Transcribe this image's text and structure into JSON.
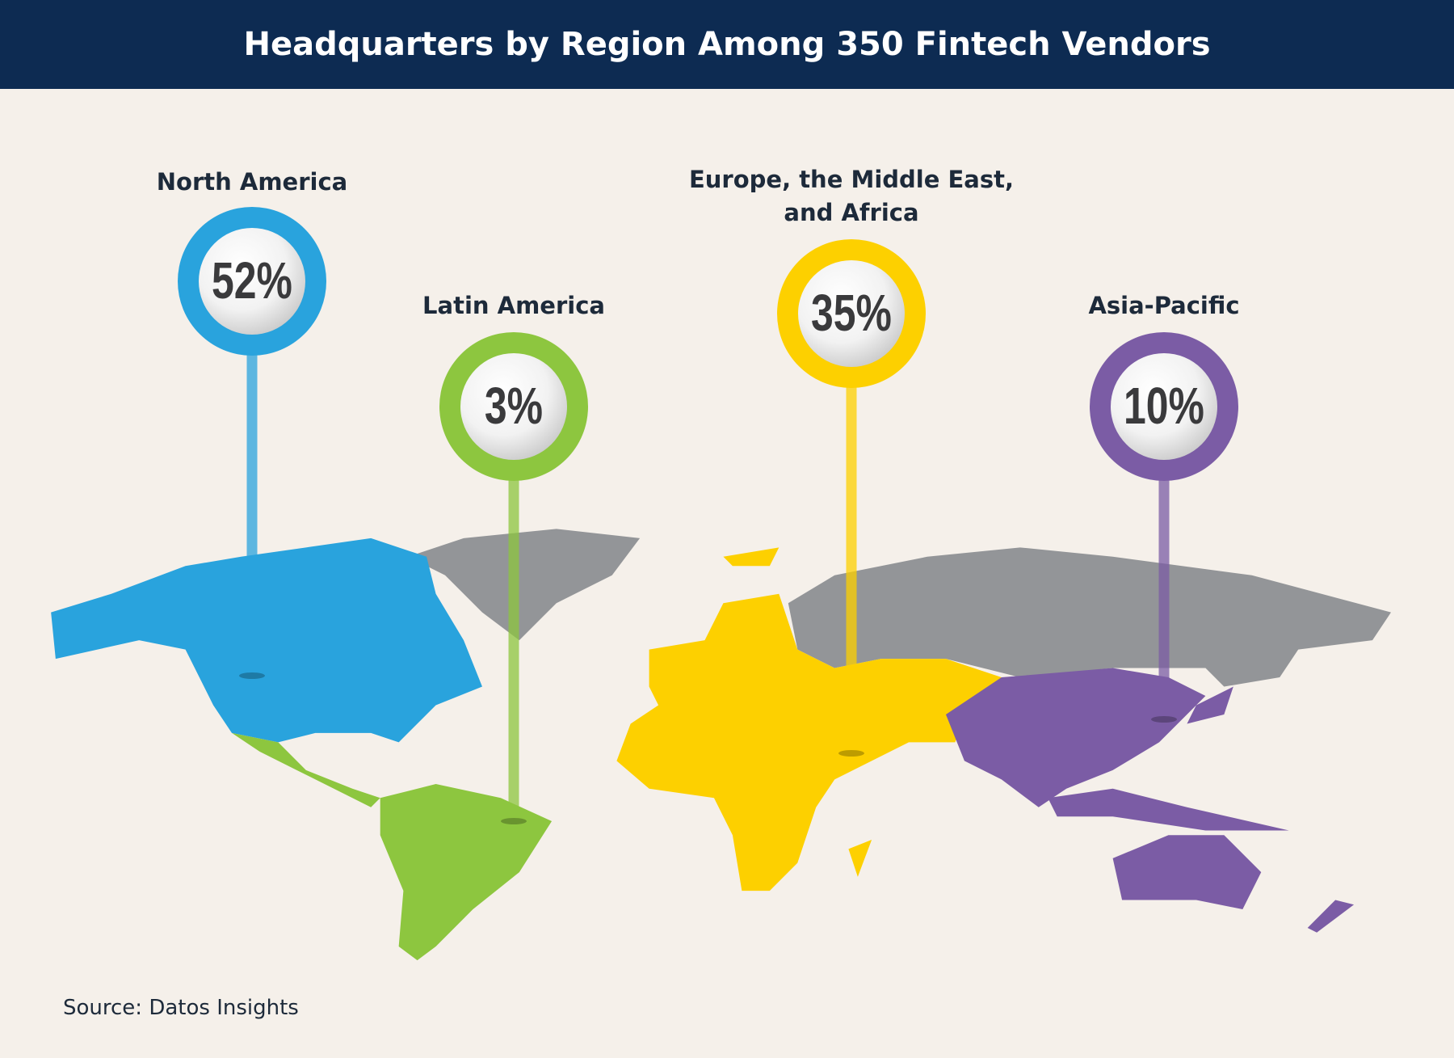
{
  "chart_data": {
    "type": "pin-map",
    "title": "Headquarters by Region Among 350 Fintech Vendors",
    "categories": [
      "North America",
      "Latin America",
      "Europe, the Middle East, and Africa",
      "Asia-Pacific"
    ],
    "values": [
      52,
      3,
      35,
      10
    ],
    "value_labels": [
      "52%",
      "3%",
      "35%",
      "10%"
    ],
    "colors": [
      "#29a3dd",
      "#8dc63f",
      "#fdd000",
      "#7b5ca5"
    ],
    "source": "Source: Datos Insights"
  }
}
